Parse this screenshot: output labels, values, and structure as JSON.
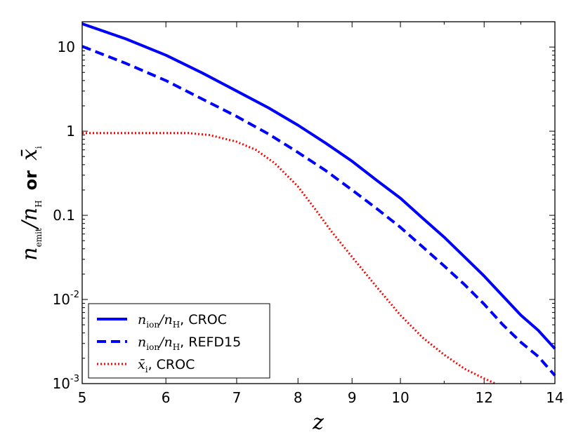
{
  "chart_data": {
    "type": "line",
    "xscale": "log",
    "yscale": "log",
    "xlim": [
      5,
      14
    ],
    "ylim": [
      0.001,
      20
    ],
    "xlabel": "z",
    "ylabel": {
      "num_var": "n",
      "num_sub": "emit",
      "den_var": "n",
      "den_sub": "H",
      "mid": "or",
      "alt_var": "x̄",
      "alt_sub": "i"
    },
    "xticks": [
      {
        "value": 5,
        "label": "5"
      },
      {
        "value": 6,
        "label": "6"
      },
      {
        "value": 7,
        "label": "7"
      },
      {
        "value": 8,
        "label": "8"
      },
      {
        "value": 9,
        "label": "9"
      },
      {
        "value": 10,
        "label": "10"
      },
      {
        "value": 12,
        "label": "12"
      },
      {
        "value": 14,
        "label": "14"
      }
    ],
    "yticks": [
      {
        "value": 10,
        "label": "10",
        "sup": ""
      },
      {
        "value": 1,
        "label": "1",
        "sup": ""
      },
      {
        "value": 0.1,
        "label": "0.1",
        "sup": ""
      },
      {
        "value": 0.01,
        "label": "10",
        "sup": "-2"
      },
      {
        "value": 0.001,
        "label": "10",
        "sup": "-3"
      }
    ],
    "series": [
      {
        "name": "n_ion/n_H, CROC",
        "legend": {
          "var": "n",
          "sub": "ion",
          "den_var": "n",
          "den_sub": "H",
          "suffix": ", CROC"
        },
        "color": "#0000ff",
        "style": "solid",
        "x": [
          5,
          5.5,
          6,
          6.5,
          7,
          7.5,
          8,
          8.5,
          9,
          9.5,
          10,
          10.5,
          11,
          11.5,
          12,
          12.5,
          13,
          13.5,
          14
        ],
        "y": [
          18.9,
          12.5,
          8.0,
          4.9,
          3.0,
          1.9,
          1.18,
          0.72,
          0.44,
          0.26,
          0.16,
          0.092,
          0.055,
          0.032,
          0.019,
          0.011,
          0.0065,
          0.0043,
          0.0026
        ]
      },
      {
        "name": "n_ion/n_H, REFD15",
        "legend": {
          "var": "n",
          "sub": "ion",
          "den_var": "n",
          "den_sub": "H",
          "suffix": ", REFD15"
        },
        "color": "#0000ff",
        "style": "dashed",
        "x": [
          5,
          5.5,
          6,
          6.5,
          7,
          7.5,
          8,
          8.5,
          9,
          9.5,
          10,
          10.5,
          11,
          11.5,
          12,
          12.5,
          13,
          13.5,
          14
        ],
        "y": [
          10.2,
          6.4,
          4.0,
          2.4,
          1.5,
          0.93,
          0.56,
          0.34,
          0.2,
          0.12,
          0.072,
          0.042,
          0.025,
          0.015,
          0.0088,
          0.005,
          0.0031,
          0.0021,
          0.00125
        ]
      },
      {
        "name": "x̄_i, CROC",
        "legend": {
          "var": "x̄",
          "sub": "i",
          "den_var": "",
          "den_sub": "",
          "suffix": ", CROC"
        },
        "color": "#ff0000",
        "style": "dotted",
        "x": [
          5,
          5.5,
          6,
          6.3,
          6.6,
          7,
          7.3,
          7.6,
          8,
          8.3,
          8.6,
          9,
          9.5,
          10,
          10.5,
          11,
          11.5,
          12,
          12.3
        ],
        "y": [
          0.95,
          0.95,
          0.95,
          0.95,
          0.9,
          0.75,
          0.6,
          0.42,
          0.22,
          0.12,
          0.065,
          0.032,
          0.014,
          0.0065,
          0.0035,
          0.0022,
          0.0015,
          0.00115,
          0.001
        ]
      }
    ]
  }
}
